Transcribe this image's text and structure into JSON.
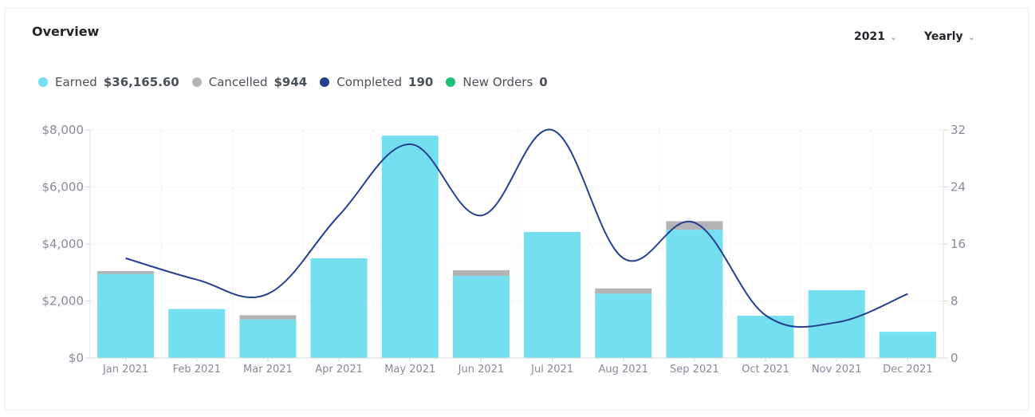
{
  "card": {
    "title": "Overview"
  },
  "filters": {
    "year_label": "2021",
    "period_label": "Yearly"
  },
  "legend": [
    {
      "name": "Earned",
      "value": "$36,165.60",
      "color": "#74dfee"
    },
    {
      "name": "Cancelled",
      "value": "$944",
      "color": "#b3b4b6"
    },
    {
      "name": "Completed",
      "value": "190",
      "color": "#25408f"
    },
    {
      "name": "New Orders",
      "value": "0",
      "color": "#1fbf75"
    }
  ],
  "chart_data": {
    "type": "bar",
    "categories": [
      "Jan 2021",
      "Feb 2021",
      "Mar 2021",
      "Apr 2021",
      "May 2021",
      "Jun 2021",
      "Jul 2021",
      "Aug 2021",
      "Sep 2021",
      "Oct 2021",
      "Nov 2021",
      "Dec 2021"
    ],
    "series": [
      {
        "name": "Earned",
        "type": "bar",
        "axis": "left",
        "color": "#74dfee",
        "values": [
          2950,
          1720,
          1350,
          3500,
          7800,
          2880,
          4420,
          2260,
          4500,
          1480,
          2380,
          920
        ]
      },
      {
        "name": "Cancelled",
        "type": "bar",
        "axis": "left",
        "stacked": true,
        "color": "#b3b4b6",
        "values": [
          100,
          0,
          150,
          0,
          0,
          200,
          0,
          180,
          300,
          0,
          0,
          0
        ]
      },
      {
        "name": "Completed",
        "type": "line",
        "axis": "right",
        "smooth": true,
        "color": "#25408f",
        "values": [
          14,
          11,
          9,
          20,
          30,
          20,
          32,
          14,
          19,
          6,
          5,
          9
        ]
      }
    ],
    "y_left": {
      "min": 0,
      "max": 8000,
      "ticks": [
        "$0",
        "$2,000",
        "$4,000",
        "$6,000",
        "$8,000"
      ]
    },
    "y_right": {
      "min": 0,
      "max": 32,
      "ticks": [
        "0",
        "8",
        "16",
        "24",
        "32"
      ]
    },
    "grid": true
  }
}
